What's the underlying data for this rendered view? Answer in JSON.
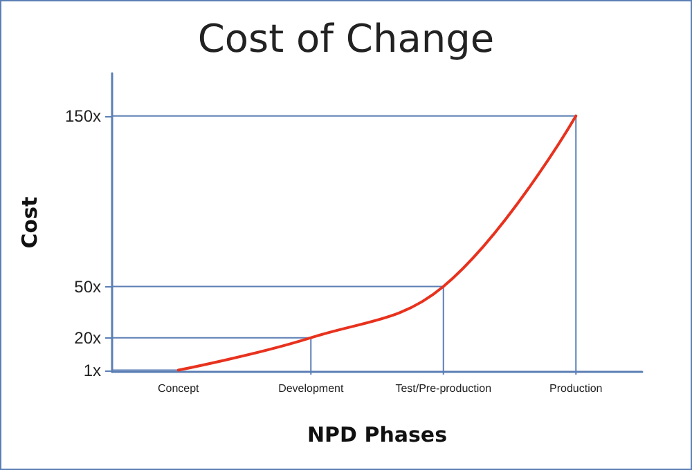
{
  "chart_data": {
    "type": "line",
    "title": "Cost of Change",
    "xlabel": "NPD Phases",
    "ylabel": "Cost",
    "categories": [
      "Concept",
      "Development",
      "Test/Pre-production",
      "Production"
    ],
    "series": [
      {
        "color": "#e8321e",
        "values": [
          1,
          20,
          50,
          150
        ]
      }
    ],
    "ylim": [
      0,
      175
    ],
    "yticks": [
      {
        "value": 1,
        "label": "1x"
      },
      {
        "value": 20,
        "label": "20x"
      },
      {
        "value": 50,
        "label": "50x"
      },
      {
        "value": 150,
        "label": "150x"
      }
    ],
    "ref_lines": [
      {
        "axis": "y",
        "value": 1,
        "color": "#5b7fb5"
      },
      {
        "axis": "y",
        "value": 20,
        "color": "#5b7fb5"
      },
      {
        "axis": "y",
        "value": 50,
        "color": "#5b7fb5"
      },
      {
        "axis": "y",
        "value": 150,
        "color": "#5b7fb5"
      },
      {
        "axis": "x",
        "value": "Development",
        "color": "#5b7fb5"
      },
      {
        "axis": "x",
        "value": "Test/Pre-production",
        "color": "#5b7fb5"
      },
      {
        "axis": "x",
        "value": "Production",
        "color": "#5b7fb5"
      }
    ],
    "marker": "none",
    "line_style": "solid"
  }
}
